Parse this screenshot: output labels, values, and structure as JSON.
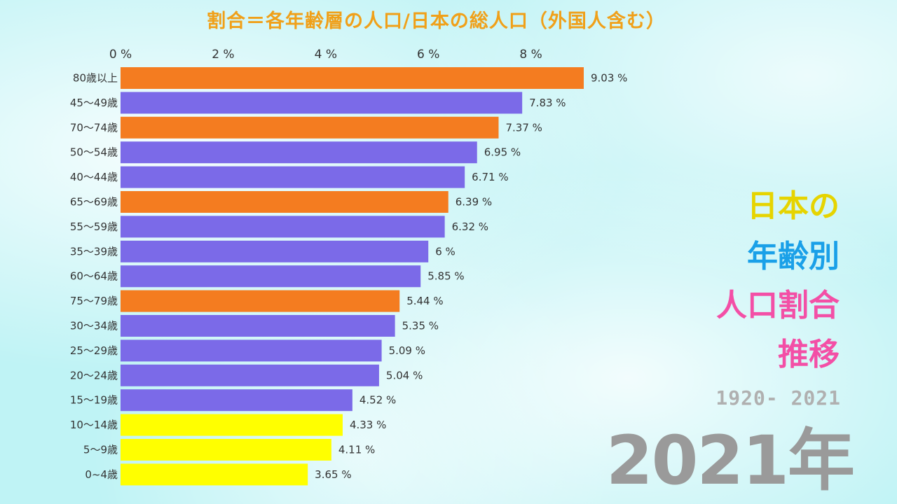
{
  "chart_data": {
    "type": "bar",
    "orientation": "horizontal",
    "title": "割合＝各年齢層の人口/日本の総人口（外国人含む）",
    "xlim": [
      0,
      9.2
    ],
    "x_ticks": [
      {
        "value": 0,
        "label": "0 %"
      },
      {
        "value": 2,
        "label": "2 %"
      },
      {
        "value": 4,
        "label": "4 %"
      },
      {
        "value": 6,
        "label": "6 %"
      },
      {
        "value": 8,
        "label": "8 %"
      }
    ],
    "categories": [
      "80歳以上",
      "45〜49歳",
      "70〜74歳",
      "50〜54歳",
      "40〜44歳",
      "65〜69歳",
      "55〜59歳",
      "35〜39歳",
      "60〜64歳",
      "75〜79歳",
      "30〜34歳",
      "25〜29歳",
      "20〜24歳",
      "15〜19歳",
      "10〜14歳",
      "5〜9歳",
      "0~4歳"
    ],
    "values": [
      9.03,
      7.83,
      7.37,
      6.95,
      6.71,
      6.39,
      6.32,
      6,
      5.85,
      5.44,
      5.35,
      5.09,
      5.04,
      4.52,
      4.33,
      4.11,
      3.65
    ],
    "value_labels": [
      "9.03 %",
      "7.83 %",
      "7.37 %",
      "6.95 %",
      "6.71 %",
      "6.39 %",
      "6.32 %",
      "6 %",
      "5.85 %",
      "5.44 %",
      "5.35 %",
      "5.09 %",
      "5.04 %",
      "4.52 %",
      "4.33 %",
      "4.11 %",
      "3.65 %"
    ],
    "bar_colors": [
      "#f47c20",
      "#7b6ae8",
      "#f47c20",
      "#7b6ae8",
      "#7b6ae8",
      "#f47c20",
      "#7b6ae8",
      "#7b6ae8",
      "#7b6ae8",
      "#f47c20",
      "#7b6ae8",
      "#7b6ae8",
      "#7b6ae8",
      "#7b6ae8",
      "#ffff00",
      "#ffff00",
      "#ffff00"
    ],
    "grid": false
  },
  "side_title": {
    "line1": "日本の",
    "line2": "年齢別",
    "line3": "人口割合",
    "line4": "推移"
  },
  "year_range": "1920- 2021",
  "current_year": "2021年"
}
